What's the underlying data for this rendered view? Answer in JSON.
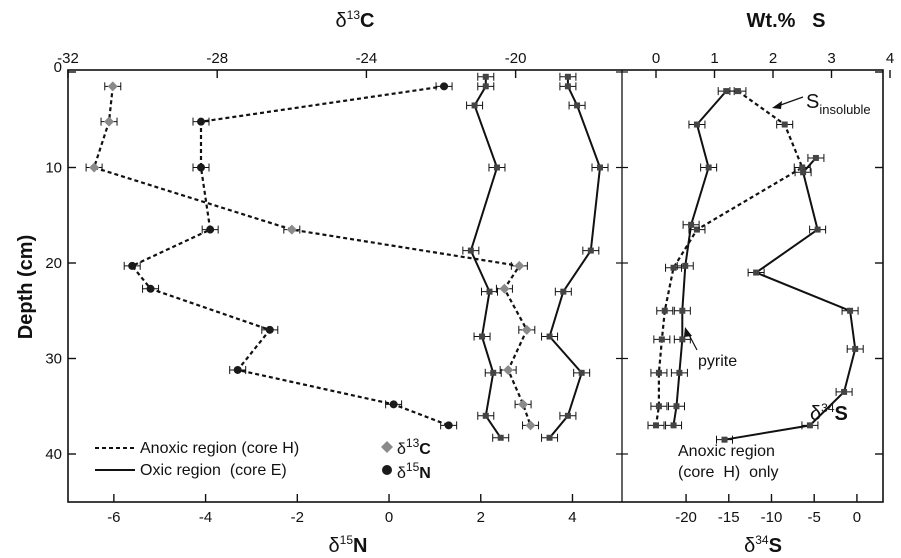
{
  "chart_data": {
    "type": "line",
    "y_axis": {
      "label": "Depth  (cm)",
      "ticks": [
        0,
        10,
        20,
        30,
        40
      ],
      "range": [
        0,
        45
      ],
      "inverted": true
    },
    "top_axes": {
      "d13C": {
        "label_prefix": "δ",
        "label_sup": "13",
        "label_main": "C",
        "ticks": [
          -32,
          -28,
          -24,
          -20
        ],
        "range": [
          -32,
          -19.4
        ]
      },
      "wtS": {
        "label": "Wt.%   S",
        "ticks": [
          0,
          1,
          2,
          3,
          4
        ],
        "range": [
          0,
          4
        ]
      }
    },
    "bottom_axes": {
      "d15N": {
        "label_prefix": "δ",
        "label_sup": "15",
        "label_main": "N",
        "ticks": [
          -6,
          -4,
          -2,
          0,
          2,
          4
        ],
        "range": [
          -7,
          4.6
        ]
      },
      "d34S": {
        "label_prefix": "δ",
        "label_sup": "34",
        "label_main": "S",
        "ticks": [
          -20,
          -15,
          -10,
          -5,
          0
        ],
        "range": [
          -27.5,
          2
        ]
      }
    },
    "series": [
      {
        "id": "anoxic_d13C",
        "axis": "d13C",
        "style": "dashed",
        "marker": "diamond",
        "points": [
          [
            1.5,
            -30.8
          ],
          [
            5.2,
            -30.9
          ],
          [
            10,
            -31.3
          ],
          [
            16.5,
            -26.0
          ],
          [
            20.3,
            -19.9
          ],
          [
            22.7,
            -20.3
          ],
          [
            27,
            -19.7
          ],
          [
            31.2,
            -20.2
          ],
          [
            34.8,
            -19.8
          ],
          [
            37,
            -19.6
          ]
        ]
      },
      {
        "id": "oxic_d13C",
        "axis": "d13C",
        "style": "solid",
        "marker": "square",
        "points": [
          [
            0.5,
            -20.8
          ],
          [
            1.5,
            -20.8
          ],
          [
            3.5,
            -21.1
          ],
          [
            10,
            -20.5
          ],
          [
            18.7,
            -21.2
          ],
          [
            23,
            -20.7
          ],
          [
            27.7,
            -20.9
          ],
          [
            31.5,
            -20.6
          ],
          [
            36,
            -20.8
          ],
          [
            38.3,
            -20.4
          ]
        ]
      },
      {
        "id": "anoxic_d15N",
        "axis": "d15N",
        "style": "dashed",
        "marker": "circle",
        "points": [
          [
            1.5,
            1.2
          ],
          [
            5.2,
            -4.1
          ],
          [
            10,
            -4.1
          ],
          [
            16.5,
            -3.9
          ],
          [
            20.3,
            -5.6
          ],
          [
            22.7,
            -5.2
          ],
          [
            27,
            -2.6
          ],
          [
            31.2,
            -3.3
          ],
          [
            34.8,
            0.1
          ],
          [
            37,
            1.3
          ]
        ]
      },
      {
        "id": "oxic_d15N",
        "axis": "d15N",
        "style": "solid",
        "marker": "square",
        "points": [
          [
            0.5,
            3.9
          ],
          [
            1.5,
            3.9
          ],
          [
            3.5,
            4.1
          ],
          [
            10,
            4.6
          ],
          [
            18.7,
            4.4
          ],
          [
            23,
            3.8
          ],
          [
            27.7,
            3.5
          ],
          [
            31.5,
            4.2
          ],
          [
            36,
            3.9
          ],
          [
            38.3,
            3.5
          ]
        ]
      },
      {
        "id": "S_insoluble",
        "axis": "wtS",
        "style": "dashed",
        "marker": "square",
        "points": [
          [
            2,
            1.4
          ],
          [
            5.5,
            2.2
          ],
          [
            10,
            2.5
          ],
          [
            16.5,
            0.7
          ],
          [
            20.5,
            0.3
          ],
          [
            25,
            0.15
          ],
          [
            28,
            0.1
          ],
          [
            31.5,
            0.05
          ],
          [
            35,
            0.05
          ],
          [
            37,
            0
          ]
        ]
      },
      {
        "id": "pyrite",
        "axis": "wtS",
        "style": "solid",
        "marker": "square",
        "points": [
          [
            2,
            1.2
          ],
          [
            5.5,
            0.7
          ],
          [
            10,
            0.9
          ],
          [
            16,
            0.6
          ],
          [
            20.3,
            0.5
          ],
          [
            25,
            0.45
          ],
          [
            28,
            0.45
          ],
          [
            31.5,
            0.4
          ],
          [
            35,
            0.35
          ],
          [
            37,
            0.3
          ]
        ]
      },
      {
        "id": "d34S",
        "axis": "d34S",
        "style": "solid",
        "marker": "square",
        "points": [
          [
            9,
            -4.8
          ],
          [
            10.5,
            -6.3
          ],
          [
            16.5,
            -4.6
          ],
          [
            21,
            -11.8
          ],
          [
            25,
            -0.8
          ],
          [
            29,
            -0.2
          ],
          [
            33.5,
            -1.5
          ],
          [
            37,
            -5.5
          ],
          [
            38.5,
            -15.5
          ]
        ]
      }
    ],
    "annotations": {
      "s_insoluble_main": "S",
      "s_insoluble_sub": "insoluble",
      "pyrite": "pyrite",
      "d34s_label_prefix": "δ",
      "d34s_label_sup": "34",
      "d34s_label_main": "S",
      "region_note_line1": "Anoxic region",
      "region_note_line2": "(core  H)  only"
    },
    "legend": {
      "position": "bottom-left",
      "entries": [
        {
          "text": "Anoxic region (core H)",
          "style": "dashed"
        },
        {
          "text": "Oxic region  (core E)",
          "style": "solid"
        }
      ],
      "markers": [
        {
          "symbol": "diamond",
          "prefix": "δ",
          "sup": "13",
          "main": "C"
        },
        {
          "symbol": "circle",
          "prefix": "δ",
          "sup": "15",
          "main": "N"
        }
      ]
    },
    "colors": {
      "line": "#111111",
      "diamond_marker": "#8a8a8a",
      "circle_marker": "#1a1a1a"
    }
  }
}
